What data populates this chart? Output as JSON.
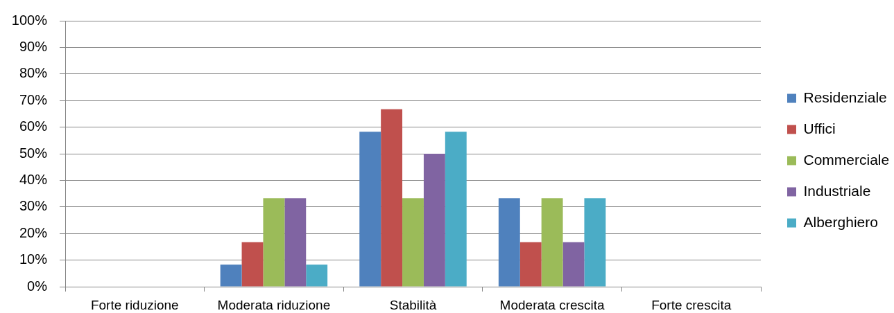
{
  "chart_data": {
    "type": "bar",
    "categories": [
      "Forte riduzione",
      "Moderata riduzione",
      "Stabilità",
      "Moderata crescita",
      "Forte crescita"
    ],
    "series": [
      {
        "name": "Residenziale",
        "color": "#4f81bd",
        "values": [
          0,
          8.3,
          58.3,
          33.3,
          0
        ]
      },
      {
        "name": "Uffici",
        "color": "#c0504d",
        "values": [
          0,
          16.7,
          66.7,
          16.7,
          0
        ]
      },
      {
        "name": "Commerciale",
        "color": "#9bbb59",
        "values": [
          0,
          33.3,
          33.3,
          33.3,
          0
        ]
      },
      {
        "name": "Industriale",
        "color": "#8064a2",
        "values": [
          0,
          33.3,
          50,
          16.7,
          0
        ]
      },
      {
        "name": "Alberghiero",
        "color": "#4bacc6",
        "values": [
          0,
          8.3,
          58.3,
          33.3,
          0
        ]
      }
    ],
    "ylim": [
      0,
      100
    ],
    "yticks": [
      {
        "value": 0,
        "label": "0%"
      },
      {
        "value": 10,
        "label": "10%"
      },
      {
        "value": 20,
        "label": "20%"
      },
      {
        "value": 30,
        "label": "30%"
      },
      {
        "value": 40,
        "label": "40%"
      },
      {
        "value": 50,
        "label": "50%"
      },
      {
        "value": 60,
        "label": "60%"
      },
      {
        "value": 70,
        "label": "70%"
      },
      {
        "value": 80,
        "label": "80%"
      },
      {
        "value": 90,
        "label": "90%"
      },
      {
        "value": 100,
        "label": "100%"
      }
    ],
    "grid": "y",
    "legend": "right"
  }
}
